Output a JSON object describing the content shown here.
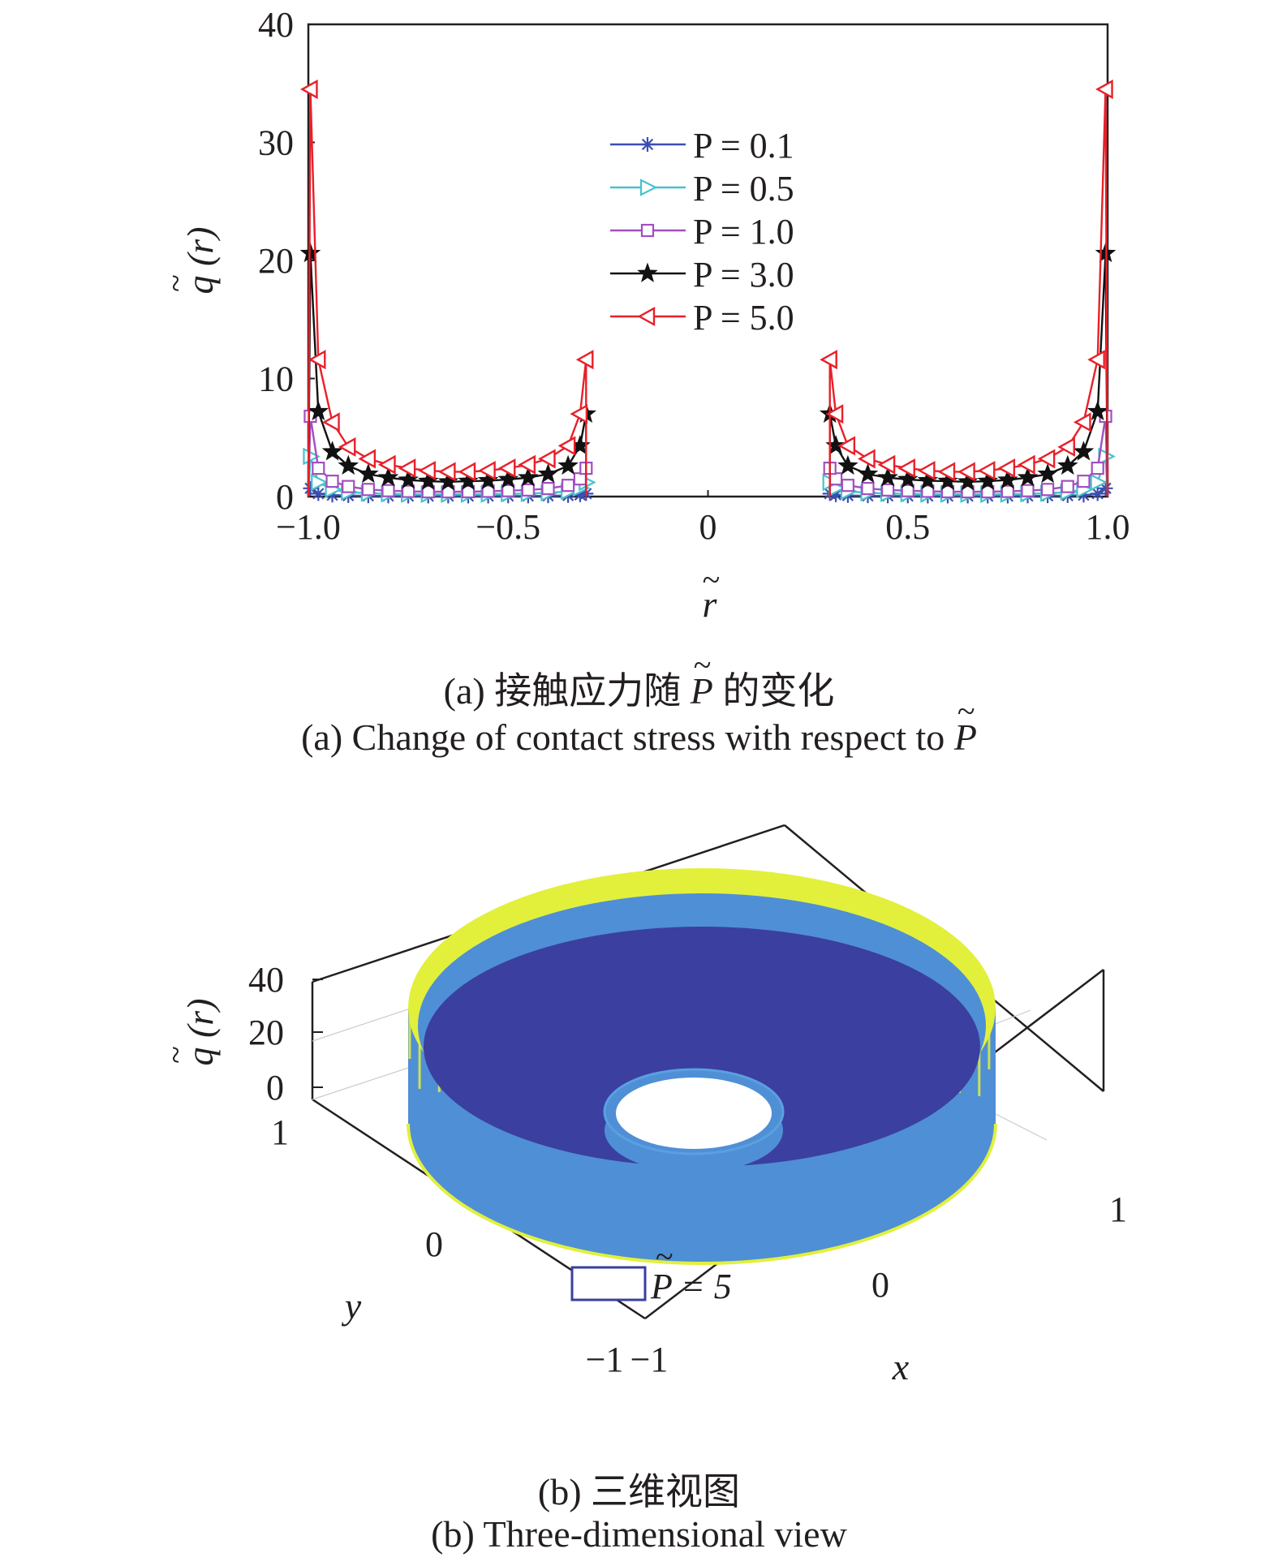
{
  "panel_a": {
    "caption_cn_prefix": "(a) 接触应力随",
    "caption_cn_symbol": "P",
    "caption_cn_suffix": "的变化",
    "caption_en_prefix": "(a) Change of contact stress with respect to",
    "caption_en_symbol": "P"
  },
  "panel_b": {
    "caption_cn": "(b) 三维视图",
    "caption_en": "(b) Three-dimensional view",
    "z_ticks": [
      "40",
      "20",
      "0"
    ],
    "y_ticks": [
      "1",
      "0",
      "−1"
    ],
    "x_ticks": [
      "−1",
      "0",
      "1"
    ],
    "xlabel": "x",
    "ylabel": "y",
    "zlabel": "q (r)",
    "legend_label": "P = 5",
    "colors": {
      "surface_low": "#3b3fa0",
      "surface_mid": "#4f8fd6",
      "surface_high": "#e2f03c"
    }
  },
  "chart_data": {
    "type": "line",
    "xlabel": "r",
    "ylabel": "q (r)",
    "xlim": [
      -1.0,
      1.0
    ],
    "ylim": [
      0,
      40
    ],
    "xticks": [
      "−1.0",
      "−0.5",
      "0",
      "0.5",
      "1.0"
    ],
    "yticks": [
      "0",
      "10",
      "20",
      "30",
      "40"
    ],
    "legend_position": "top-center",
    "grid": false,
    "x": [
      -0.995,
      -0.975,
      -0.94,
      -0.9,
      -0.85,
      -0.8,
      -0.75,
      -0.7,
      -0.65,
      -0.6,
      -0.55,
      -0.5,
      -0.45,
      -0.4,
      -0.35,
      -0.32,
      -0.305
    ],
    "series": [
      {
        "name": "P = 0.1",
        "color": "#3b4fb0",
        "marker": "asterisk",
        "values": [
          0.7,
          0.25,
          0.12,
          0.08,
          0.06,
          0.05,
          0.04,
          0.04,
          0.04,
          0.04,
          0.04,
          0.05,
          0.05,
          0.06,
          0.09,
          0.15,
          0.25
        ]
      },
      {
        "name": "P = 0.5",
        "color": "#47c3cc",
        "marker": "triangle-right",
        "values": [
          3.4,
          1.2,
          0.6,
          0.38,
          0.28,
          0.23,
          0.2,
          0.19,
          0.19,
          0.2,
          0.21,
          0.23,
          0.26,
          0.31,
          0.44,
          0.72,
          1.2
        ]
      },
      {
        "name": "P = 1.0",
        "color": "#a24fc0",
        "marker": "square",
        "values": [
          6.8,
          2.4,
          1.3,
          0.85,
          0.6,
          0.5,
          0.44,
          0.41,
          0.41,
          0.42,
          0.45,
          0.5,
          0.56,
          0.68,
          0.95,
          1.5,
          2.4
        ]
      },
      {
        "name": "P = 3.0",
        "color": "#111111",
        "marker": "star",
        "values": [
          20.6,
          7.2,
          3.8,
          2.6,
          1.9,
          1.6,
          1.4,
          1.3,
          1.25,
          1.3,
          1.35,
          1.45,
          1.6,
          1.9,
          2.6,
          4.3,
          7.0
        ]
      },
      {
        "name": "P = 5.0",
        "color": "#e8202a",
        "marker": "triangle-left",
        "values": [
          34.5,
          11.6,
          6.3,
          4.2,
          3.2,
          2.7,
          2.4,
          2.2,
          2.1,
          2.1,
          2.2,
          2.4,
          2.7,
          3.2,
          4.3,
          7.0,
          11.6
        ]
      }
    ]
  }
}
